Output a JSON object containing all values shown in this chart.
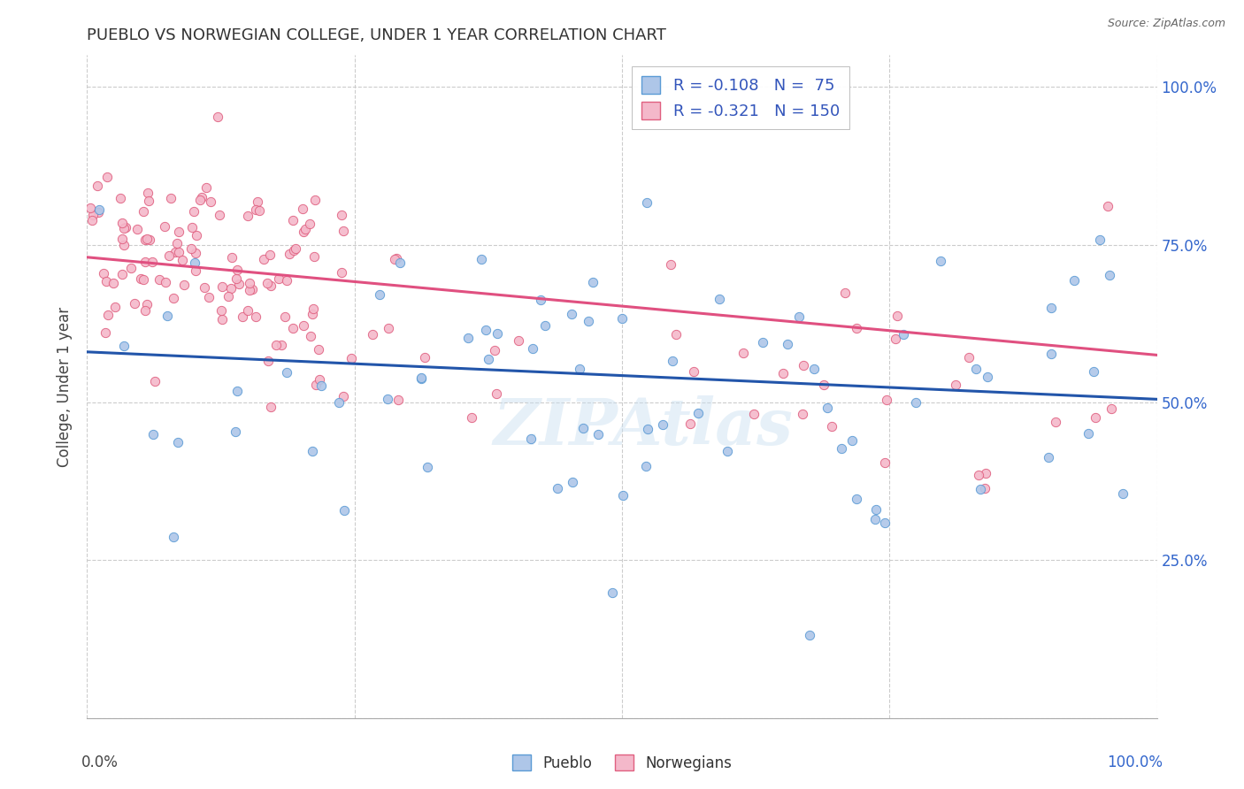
{
  "title": "PUEBLO VS NORWEGIAN COLLEGE, UNDER 1 YEAR CORRELATION CHART",
  "source": "Source: ZipAtlas.com",
  "ylabel": "College, Under 1 year",
  "right_yticks": [
    "25.0%",
    "50.0%",
    "75.0%",
    "100.0%"
  ],
  "right_ytick_vals": [
    0.25,
    0.5,
    0.75,
    1.0
  ],
  "watermark": "ZIPAtlas",
  "pueblo_color": "#aec6e8",
  "pueblo_edge": "#5b9bd5",
  "norwegian_color": "#f4b8ca",
  "norwegian_edge": "#e06080",
  "pueblo_R": -0.108,
  "pueblo_N": 75,
  "norwegian_R": -0.321,
  "norwegian_N": 150,
  "pueblo_line_color": "#2255aa",
  "norwegian_line_color": "#e05080",
  "legend_label_color": "#3355bb",
  "right_axis_color": "#3366cc",
  "pueblo_line_intercept": 0.58,
  "pueblo_line_slope": -0.075,
  "norwegian_line_intercept": 0.73,
  "norwegian_line_slope": -0.155
}
